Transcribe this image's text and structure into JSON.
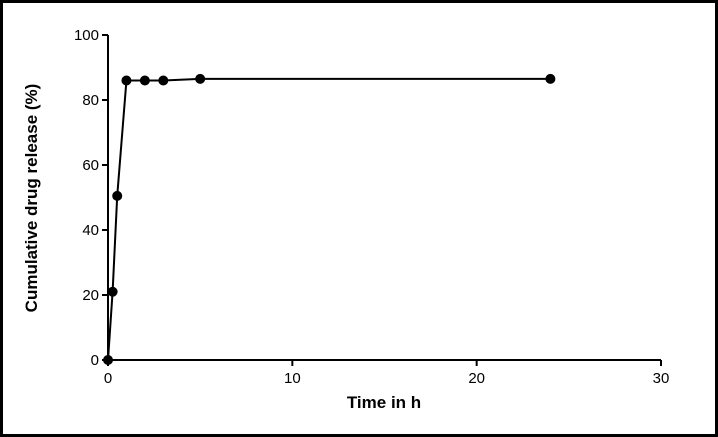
{
  "chart_data": {
    "type": "line",
    "x_label": "Time in h",
    "y_label": "Cumulative drug release  (%)",
    "series": [
      {
        "name": "release",
        "color": "#000000",
        "x": [
          0,
          0.25,
          0.5,
          1,
          2,
          3,
          5,
          24
        ],
        "values": [
          0,
          21,
          50.5,
          86,
          86,
          86,
          86.5,
          86.5
        ]
      }
    ],
    "xlim": [
      0,
      30
    ],
    "xticks": [
      0,
      10,
      20,
      30
    ],
    "ylim": [
      0,
      100
    ],
    "yticks": [
      0,
      20,
      40,
      60,
      80,
      100
    ],
    "grid": false,
    "legend": false
  }
}
